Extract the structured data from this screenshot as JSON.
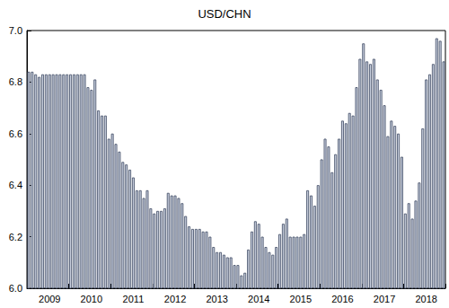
{
  "chart_data": {
    "type": "bar",
    "title": "USD/CHN",
    "categories": [
      null,
      null,
      null,
      null,
      null,
      null,
      "2009",
      null,
      null,
      null,
      null,
      null,
      null,
      null,
      null,
      null,
      null,
      null,
      "2010",
      null,
      null,
      null,
      null,
      null,
      null,
      null,
      null,
      null,
      null,
      null,
      "2011",
      null,
      null,
      null,
      null,
      null,
      null,
      null,
      null,
      null,
      null,
      null,
      "2012",
      null,
      null,
      null,
      null,
      null,
      null,
      null,
      null,
      null,
      null,
      null,
      "2013",
      null,
      null,
      null,
      null,
      null,
      null,
      null,
      null,
      null,
      null,
      null,
      "2014",
      null,
      null,
      null,
      null,
      null,
      null,
      null,
      null,
      null,
      null,
      null,
      "2015",
      null,
      null,
      null,
      null,
      null,
      null,
      null,
      null,
      null,
      null,
      null,
      "2016",
      null,
      null,
      null,
      null,
      null,
      null,
      null,
      null,
      null,
      null,
      null,
      "2017",
      null,
      null,
      null,
      null,
      null,
      null,
      null,
      null,
      null,
      null,
      null,
      "2018",
      null,
      null,
      null,
      null,
      null
    ],
    "values": [
      6.84,
      6.84,
      6.83,
      6.82,
      6.83,
      6.83,
      6.83,
      6.83,
      6.83,
      6.83,
      6.83,
      6.83,
      6.83,
      6.83,
      6.83,
      6.83,
      6.83,
      6.78,
      6.77,
      6.81,
      6.69,
      6.67,
      6.67,
      6.58,
      6.6,
      6.56,
      6.53,
      6.49,
      6.48,
      6.46,
      6.43,
      6.38,
      6.38,
      6.35,
      6.38,
      6.31,
      6.29,
      6.3,
      6.3,
      6.31,
      6.37,
      6.36,
      6.36,
      6.35,
      6.33,
      6.28,
      6.24,
      6.23,
      6.23,
      6.23,
      6.22,
      6.22,
      6.2,
      6.16,
      6.14,
      6.14,
      6.13,
      6.12,
      6.12,
      6.09,
      6.09,
      6.05,
      6.06,
      6.15,
      6.22,
      6.26,
      6.25,
      6.2,
      6.16,
      6.14,
      6.13,
      6.16,
      6.21,
      6.25,
      6.27,
      6.2,
      6.2,
      6.2,
      6.2,
      6.21,
      6.38,
      6.36,
      6.32,
      6.4,
      6.5,
      6.58,
      6.55,
      6.45,
      6.52,
      6.58,
      6.65,
      6.64,
      6.68,
      6.67,
      6.78,
      6.89,
      6.95,
      6.88,
      6.87,
      6.89,
      6.81,
      6.77,
      6.71,
      6.59,
      6.65,
      6.63,
      6.6,
      6.51,
      6.29,
      6.33,
      6.27,
      6.34,
      6.41,
      6.62,
      6.81,
      6.83,
      6.87,
      6.97,
      6.96,
      6.88
    ],
    "color": "#c9d0df",
    "ylim": [
      6,
      7
    ],
    "yticks": [
      {
        "value": 6,
        "label": "6.0"
      },
      6.2,
      6.4,
      6.6,
      6.8,
      {
        "value": 7,
        "label": "7.0"
      }
    ],
    "grid": false
  }
}
